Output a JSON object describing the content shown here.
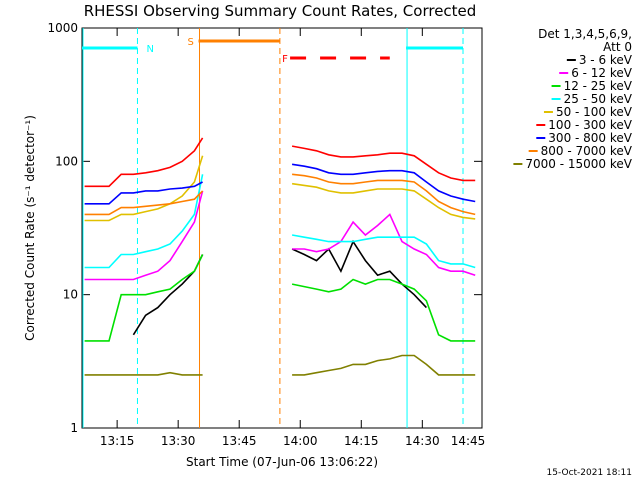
{
  "chart_data": {
    "type": "line",
    "title": "RHESSI Observing Summary Count Rates, Corrected",
    "x_label": "Start Time (07-Jun-06 13:06:22)",
    "y_label": "Corrected Count Rate (s⁻¹ detector⁻¹)",
    "legend_title": [
      "Det 1,3,4,5,6,9,",
      "Att 0"
    ],
    "footer": "15-Oct-2021 18:11",
    "log_y": true,
    "legend": "right",
    "xlim": [
      "13:06:22",
      "14:44:40"
    ],
    "xticks": [
      {
        "value": "13:15",
        "label": "13:15"
      },
      {
        "value": "13:30",
        "label": "13:30"
      },
      {
        "value": "13:45",
        "label": "13:45"
      },
      {
        "value": "14:00",
        "label": "14:00"
      },
      {
        "value": "14:15",
        "label": "14:15"
      },
      {
        "value": "14:30",
        "label": "14:30"
      },
      {
        "value": "14:45",
        "label": "14:45"
      }
    ],
    "ylim": [
      1,
      1000
    ],
    "yticks": [
      1,
      10,
      100,
      1000
    ],
    "x": [
      "13:07",
      "13:10",
      "13:13",
      "13:16",
      "13:19",
      "13:22",
      "13:25",
      "13:28",
      "13:31",
      "13:34",
      "13:36",
      "13:46",
      "13:58",
      "14:01",
      "14:04",
      "14:07",
      "14:10",
      "14:13",
      "14:16",
      "14:19",
      "14:22",
      "14:25",
      "14:28",
      "14:31",
      "14:34",
      "14:37",
      "14:40",
      "14:43"
    ],
    "series": [
      {
        "name": "3 - 6 keV",
        "color": "#000000",
        "values": [
          null,
          null,
          null,
          null,
          5,
          7,
          8,
          10,
          12,
          15,
          20,
          null,
          22,
          20,
          18,
          22,
          15,
          25,
          18,
          14,
          15,
          12,
          10,
          8,
          null,
          null,
          null,
          null
        ]
      },
      {
        "name": "6 - 12 keV",
        "color": "#ff00ff",
        "values": [
          13,
          13,
          13,
          13,
          13,
          14,
          15,
          18,
          25,
          35,
          60,
          null,
          22,
          22,
          21,
          22,
          25,
          35,
          28,
          33,
          40,
          25,
          22,
          20,
          16,
          15,
          15,
          14
        ]
      },
      {
        "name": "12 - 25 keV",
        "color": "#00e000",
        "values": [
          4.5,
          4.5,
          4.5,
          10,
          10,
          10,
          10.5,
          11,
          13,
          15,
          20,
          null,
          12,
          11.5,
          11,
          10.5,
          11,
          13,
          12,
          13,
          13,
          12,
          11,
          9,
          5,
          4.5,
          4.5,
          4.5
        ]
      },
      {
        "name": "25 - 50 keV",
        "color": "#00ffff",
        "values": [
          16,
          16,
          16,
          20,
          20,
          21,
          22,
          24,
          30,
          40,
          80,
          null,
          28,
          27,
          26,
          25,
          25,
          25,
          26,
          27,
          27,
          27,
          27,
          24,
          18,
          17,
          17,
          16
        ]
      },
      {
        "name": "50 - 100 keV",
        "color": "#e0c000",
        "values": [
          36,
          36,
          36,
          40,
          40,
          42,
          44,
          48,
          55,
          70,
          110,
          null,
          68,
          66,
          64,
          60,
          58,
          58,
          60,
          62,
          62,
          62,
          60,
          52,
          45,
          40,
          38,
          37
        ]
      },
      {
        "name": "100 - 300 keV",
        "color": "#ff0000",
        "values": [
          65,
          65,
          65,
          80,
          80,
          82,
          85,
          90,
          100,
          120,
          150,
          null,
          130,
          125,
          120,
          112,
          108,
          108,
          110,
          112,
          115,
          115,
          110,
          95,
          82,
          75,
          72,
          72
        ]
      },
      {
        "name": "300 - 800 keV",
        "color": "#0000ff",
        "values": [
          48,
          48,
          48,
          58,
          58,
          60,
          60,
          62,
          63,
          65,
          70,
          null,
          95,
          92,
          88,
          82,
          80,
          80,
          82,
          84,
          85,
          85,
          82,
          70,
          60,
          55,
          52,
          50
        ]
      },
      {
        "name": "800 - 7000 keV",
        "color": "#ff8000",
        "values": [
          40,
          40,
          40,
          45,
          45,
          46,
          47,
          48,
          50,
          52,
          60,
          null,
          80,
          78,
          75,
          70,
          68,
          68,
          70,
          72,
          72,
          72,
          70,
          60,
          50,
          45,
          42,
          40
        ]
      },
      {
        "name": "7000 - 15000 keV",
        "color": "#808000",
        "values": [
          2.5,
          2.5,
          2.5,
          2.5,
          2.5,
          2.5,
          2.5,
          2.6,
          2.5,
          2.5,
          2.5,
          null,
          2.5,
          2.5,
          2.6,
          2.7,
          2.8,
          3,
          3,
          3.2,
          3.3,
          3.5,
          3.5,
          3,
          2.5,
          2.5,
          2.5,
          2.5
        ]
      }
    ],
    "intervals": [
      {
        "label": "N",
        "color": "#00ffff",
        "start": "13:06:22",
        "end": "13:20",
        "bar": "solid",
        "edges": true
      },
      {
        "label": "S",
        "color": "#ff8000",
        "start": "13:35",
        "end": "13:55",
        "bar": "solid",
        "edges": true
      },
      {
        "label": "F",
        "color": "#ff0000",
        "start": "13:57:30",
        "end": "14:22",
        "bar": "dashed",
        "edges": false
      },
      {
        "label": null,
        "color": "#00ffff",
        "start": "14:26",
        "end": "14:40",
        "bar": "solid",
        "edges": true
      }
    ]
  }
}
